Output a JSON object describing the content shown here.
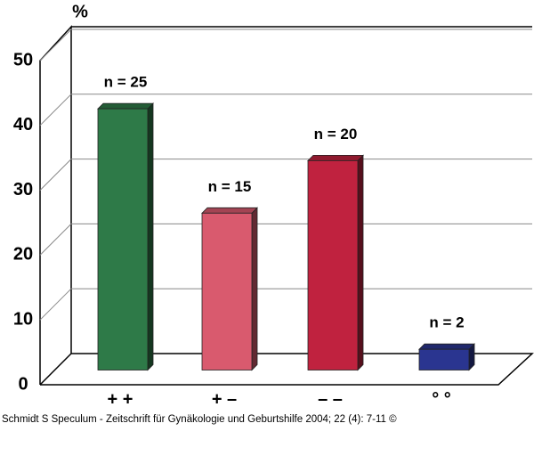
{
  "chart_data": {
    "type": "bar3d",
    "y_label": "%",
    "categories": [
      "+ +",
      "+ –",
      "– –",
      "° °"
    ],
    "values": [
      40.3,
      24.2,
      32.3,
      3.2
    ],
    "annotations": [
      "n = 25",
      "n = 15",
      "n = 20",
      "n = 2"
    ],
    "colors": [
      "#2e7a48",
      "#d95a6e",
      "#c0223f",
      "#2a3590"
    ],
    "ylim": [
      0,
      50
    ],
    "yticks": [
      0,
      10,
      20,
      30,
      40,
      50
    ],
    "grid": true,
    "source": "Schmidt S Speculum - Zeitschrift für Gynäkologie und Geburtshilfe 2004; 22 (4): 7-11 ©"
  }
}
